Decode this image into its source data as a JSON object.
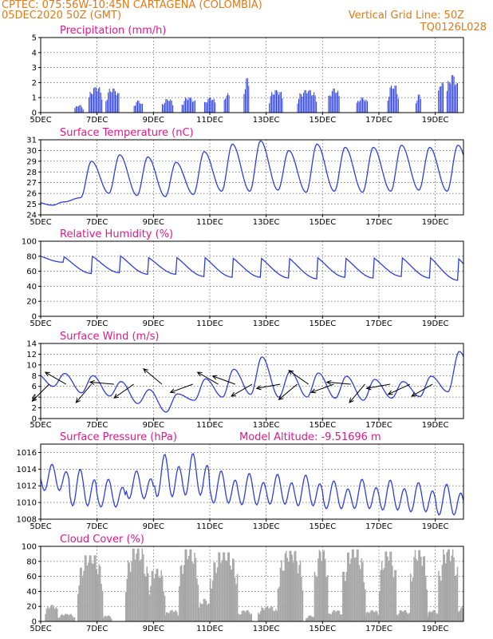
{
  "header": {
    "line1": "CPTEC:   075:56W-10:45N   CARTAGENA (COLOMBIA)",
    "line2": "05DEC2020 50Z (GMT)",
    "grid_label": "Vertical Grid Line: 50Z",
    "code": "TQ0126L028"
  },
  "x_axis": {
    "ticks": [
      "5DEC",
      "7DEC",
      "9DEC",
      "11DEC",
      "13DEC",
      "15DEC",
      "17DEC",
      "19DEC"
    ],
    "tick_days": [
      0,
      2,
      4,
      6,
      8,
      10,
      12,
      14
    ],
    "range_days": [
      0,
      15
    ]
  },
  "colors": {
    "series": "#2b3fe0",
    "cloud": "#a6a6a6",
    "title": "#e0188c",
    "header": "#e07a18"
  },
  "chart_data": [
    {
      "type": "bar",
      "title": "Precipitation (mm/h)",
      "ylim": [
        0,
        5
      ],
      "yticks": [
        0,
        1,
        2,
        3,
        4,
        5
      ],
      "episodes": [
        [
          1.2,
          1.5,
          0.5
        ],
        [
          1.7,
          2.2,
          1.7
        ],
        [
          2.3,
          2.8,
          1.6
        ],
        [
          3.3,
          3.6,
          0.8
        ],
        [
          4.3,
          4.7,
          0.9
        ],
        [
          5.0,
          5.5,
          1.0
        ],
        [
          5.8,
          6.2,
          1.0
        ],
        [
          6.5,
          6.7,
          1.3
        ],
        [
          7.2,
          7.4,
          2.3
        ],
        [
          8.1,
          8.6,
          1.5
        ],
        [
          9.1,
          9.8,
          1.5
        ],
        [
          10.2,
          10.6,
          1.6
        ],
        [
          11.2,
          11.6,
          1.0
        ],
        [
          12.3,
          12.7,
          1.8
        ],
        [
          13.3,
          13.5,
          1.2
        ],
        [
          14.1,
          14.3,
          2.1
        ],
        [
          14.4,
          14.8,
          2.5
        ]
      ]
    },
    {
      "type": "line",
      "title": "Surface Temperature (nC)",
      "ylim": [
        24,
        31
      ],
      "yticks": [
        24,
        25,
        26,
        27,
        28,
        29,
        30,
        31
      ],
      "daily_max": [
        25.2,
        29.0,
        29.6,
        29.4,
        28.9,
        29.9,
        30.6,
        30.9,
        30.0,
        30.6,
        30.3,
        30.3,
        30.5,
        30.3,
        30.5,
        30.9
      ],
      "daily_min": [
        24.9,
        25.6,
        26.0,
        25.8,
        25.7,
        25.9,
        26.2,
        26.2,
        26.3,
        26.1,
        26.2,
        26.1,
        26.2,
        26.3,
        26.2,
        26.5
      ]
    },
    {
      "type": "line",
      "title": "Relative Humidity (%)",
      "ylim": [
        0,
        100
      ],
      "yticks": [
        0,
        20,
        40,
        60,
        80,
        100
      ],
      "daily_max": [
        85,
        86,
        87,
        84,
        85,
        85,
        84,
        84,
        84,
        85,
        84,
        84,
        85,
        86,
        85,
        84
      ],
      "daily_min": [
        72,
        57,
        58,
        56,
        56,
        53,
        52,
        52,
        51,
        50,
        52,
        51,
        53,
        51,
        48,
        45
      ]
    },
    {
      "type": "line",
      "title": "Surface Wind (m/s)",
      "ylim": [
        0,
        14
      ],
      "yticks": [
        0,
        2,
        4,
        6,
        8,
        10,
        12,
        14
      ],
      "daily_max": [
        8.4,
        8.0,
        6.9,
        5.4,
        4.6,
        7.4,
        9.2,
        11.5,
        8.8,
        8.5,
        7.9,
        7.3,
        6.9,
        7.9,
        12.5,
        8.0
      ],
      "daily_min": [
        6.0,
        4.8,
        4.2,
        2.8,
        1.2,
        3.4,
        4.0,
        4.5,
        4.0,
        4.0,
        3.8,
        3.4,
        3.8,
        4.1,
        5.0,
        6.0
      ],
      "vector_days": [
        0.3,
        0.9,
        1.8,
        2.6,
        3.3,
        4.3,
        5.4,
        6.3,
        6.9,
        7.5,
        8.5,
        9.1,
        9.5,
        10.4,
        11.0,
        11.5,
        12.4,
        13.1,
        13.9
      ],
      "vector_angles_deg": [
        225,
        150,
        230,
        175,
        215,
        140,
        200,
        150,
        160,
        210,
        190,
        220,
        145,
        200,
        175,
        230,
        190,
        205,
        210
      ]
    },
    {
      "type": "line",
      "title": "Surface Pressure (hPa)",
      "subtitle": "Model Altitude: -9.51696 m",
      "ylim": [
        1008,
        1017
      ],
      "yticks": [
        1008,
        1010,
        1012,
        1014,
        1016
      ],
      "daily_max": [
        1014.6,
        1014.0,
        1012.8,
        1013.8,
        1015.8,
        1015.9,
        1013.8,
        1013.5,
        1013.4,
        1013.3,
        1012.6,
        1012.8,
        1012.7,
        1012.4,
        1012.2,
        1011.8
      ],
      "daily_min": [
        1011.0,
        1009.0,
        1009.0,
        1010.0,
        1010.0,
        1010.2,
        1009.4,
        1009.2,
        1009.3,
        1009.1,
        1008.8,
        1008.8,
        1008.6,
        1008.4,
        1008.0,
        1008.2
      ]
    },
    {
      "type": "bar",
      "title": "Cloud Cover (%)",
      "ylim": [
        0,
        100
      ],
      "yticks": [
        0,
        20,
        40,
        60,
        80,
        100
      ],
      "episodes": [
        [
          0.15,
          0.6,
          22
        ],
        [
          0.6,
          1.2,
          10
        ],
        [
          1.3,
          2.2,
          88
        ],
        [
          2.2,
          2.5,
          8
        ],
        [
          3.0,
          3.8,
          97
        ],
        [
          3.8,
          4.4,
          70
        ],
        [
          4.4,
          4.9,
          15
        ],
        [
          4.9,
          5.6,
          96
        ],
        [
          5.6,
          6.0,
          30
        ],
        [
          6.0,
          7.0,
          92
        ],
        [
          7.0,
          7.5,
          15
        ],
        [
          7.7,
          8.4,
          20
        ],
        [
          8.4,
          9.3,
          94
        ],
        [
          9.4,
          9.7,
          8
        ],
        [
          9.7,
          10.2,
          95
        ],
        [
          10.2,
          10.7,
          15
        ],
        [
          10.7,
          11.5,
          96
        ],
        [
          11.5,
          12.0,
          15
        ],
        [
          12.0,
          12.6,
          93
        ],
        [
          12.6,
          13.1,
          15
        ],
        [
          13.1,
          13.7,
          95
        ],
        [
          13.7,
          14.1,
          15
        ],
        [
          14.1,
          14.8,
          96
        ],
        [
          14.8,
          15.0,
          20
        ]
      ]
    }
  ]
}
